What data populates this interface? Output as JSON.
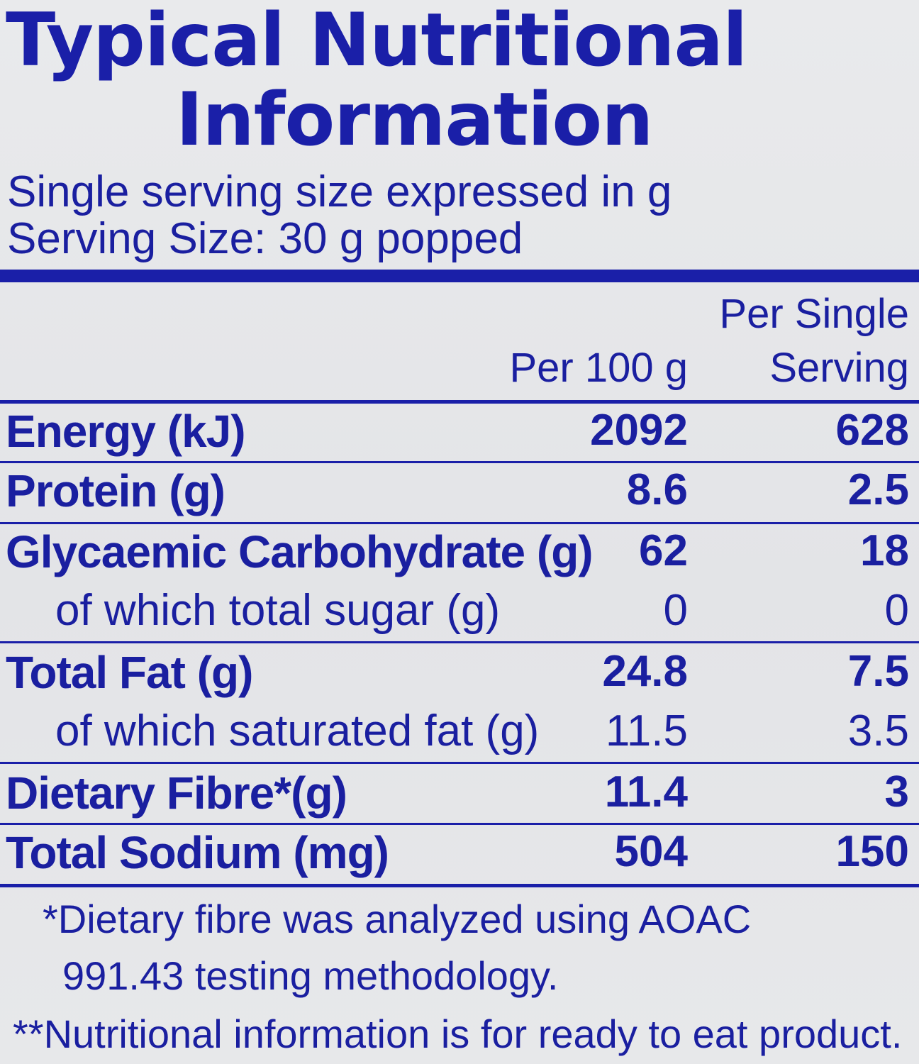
{
  "panel": {
    "title_line1": "Typical Nutritional",
    "title_line2": "Information",
    "subtitle_line1": "Single serving size expressed in g",
    "subtitle_line2": "Serving Size: 30 g popped"
  },
  "table": {
    "col1_header": "Per 100 g",
    "col2_header_line1": "Per Single",
    "col2_header_line2": "Serving",
    "rows": [
      {
        "label": "Energy (kJ)",
        "per100": "2092",
        "perServing": "628",
        "style": "bold"
      },
      {
        "label": "Protein (g)",
        "per100": "8.6",
        "perServing": "2.5",
        "style": "bold"
      },
      {
        "label": "Glycaemic Carbohydrate (g)",
        "per100": "62",
        "perServing": "18",
        "style": "bold"
      },
      {
        "label": "of which total sugar (g)",
        "per100": "0",
        "perServing": "0",
        "style": "indent"
      },
      {
        "label": "Total Fat (g)",
        "per100": "24.8",
        "perServing": "7.5",
        "style": "bold"
      },
      {
        "label": "of which saturated fat (g)",
        "per100": "11.5",
        "perServing": "3.5",
        "style": "indent"
      },
      {
        "label": "Dietary Fibre*(g)",
        "per100": "11.4",
        "perServing": "3",
        "style": "bold"
      },
      {
        "label": "Total Sodium (mg)",
        "per100": "504",
        "perServing": "150",
        "style": "bold"
      }
    ]
  },
  "footnotes": {
    "note1_line1": "*Dietary fibre was analyzed using AOAC",
    "note1_line2": "991.43 testing methodology.",
    "note2": "**Nutritional information is for ready to eat product."
  },
  "colors": {
    "ink": "#1a1fa0",
    "background": "#e6e7ea"
  }
}
